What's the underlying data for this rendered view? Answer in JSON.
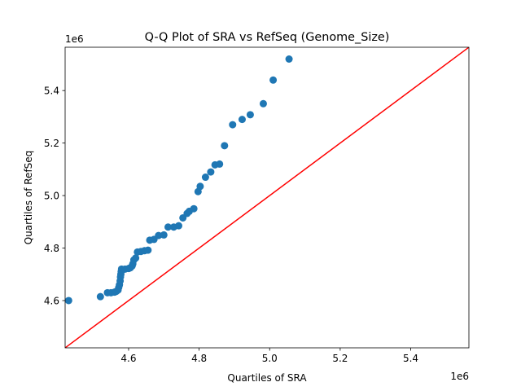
{
  "chart_data": {
    "type": "scatter",
    "title": "Q-Q Plot of SRA vs RefSeq (Genome_Size)",
    "xlabel": "Quartiles of SRA",
    "ylabel": "Quartiles of RefSeq",
    "x_offset_label": "1e6",
    "y_offset_label": "1e6",
    "xlim": [
      4.42,
      5.565
    ],
    "ylim": [
      4.42,
      5.565
    ],
    "x_ticks": [
      4.6,
      4.8,
      5.0,
      5.2,
      5.4
    ],
    "x_tick_labels": [
      "4.6",
      "4.8",
      "5.0",
      "5.2",
      "5.4"
    ],
    "y_ticks": [
      4.6,
      4.8,
      5.0,
      5.2,
      5.4
    ],
    "y_tick_labels": [
      "4.6",
      "4.8",
      "5.0",
      "5.2",
      "5.4"
    ],
    "grid": false,
    "series": [
      {
        "color": "#1f77b4",
        "marker": "circle",
        "points": [
          [
            4.43,
            4.6
          ],
          [
            4.52,
            4.615
          ],
          [
            4.54,
            4.63
          ],
          [
            4.55,
            4.63
          ],
          [
            4.56,
            4.632
          ],
          [
            4.565,
            4.635
          ],
          [
            4.57,
            4.64
          ],
          [
            4.572,
            4.65
          ],
          [
            4.574,
            4.66
          ],
          [
            4.576,
            4.675
          ],
          [
            4.577,
            4.69
          ],
          [
            4.578,
            4.7
          ],
          [
            4.579,
            4.71
          ],
          [
            4.58,
            4.72
          ],
          [
            4.59,
            4.72
          ],
          [
            4.6,
            4.722
          ],
          [
            4.605,
            4.725
          ],
          [
            4.61,
            4.732
          ],
          [
            4.612,
            4.74
          ],
          [
            4.615,
            4.755
          ],
          [
            4.62,
            4.762
          ],
          [
            4.625,
            4.785
          ],
          [
            4.635,
            4.787
          ],
          [
            4.645,
            4.79
          ],
          [
            4.655,
            4.792
          ],
          [
            4.66,
            4.83
          ],
          [
            4.672,
            4.833
          ],
          [
            4.685,
            4.848
          ],
          [
            4.7,
            4.85
          ],
          [
            4.712,
            4.88
          ],
          [
            4.728,
            4.88
          ],
          [
            4.742,
            4.885
          ],
          [
            4.754,
            4.915
          ],
          [
            4.766,
            4.932
          ],
          [
            4.772,
            4.94
          ],
          [
            4.785,
            4.95
          ],
          [
            4.797,
            5.015
          ],
          [
            4.803,
            5.035
          ],
          [
            4.818,
            5.07
          ],
          [
            4.833,
            5.09
          ],
          [
            4.845,
            5.117
          ],
          [
            4.858,
            5.12
          ],
          [
            4.872,
            5.19
          ],
          [
            4.895,
            5.27
          ],
          [
            4.922,
            5.29
          ],
          [
            4.945,
            5.308
          ],
          [
            4.982,
            5.35
          ],
          [
            5.01,
            5.44
          ],
          [
            5.055,
            5.52
          ]
        ]
      }
    ],
    "reference_line": {
      "color": "#ff0000",
      "from": [
        4.42,
        4.42
      ],
      "to": [
        5.565,
        5.565
      ]
    }
  }
}
